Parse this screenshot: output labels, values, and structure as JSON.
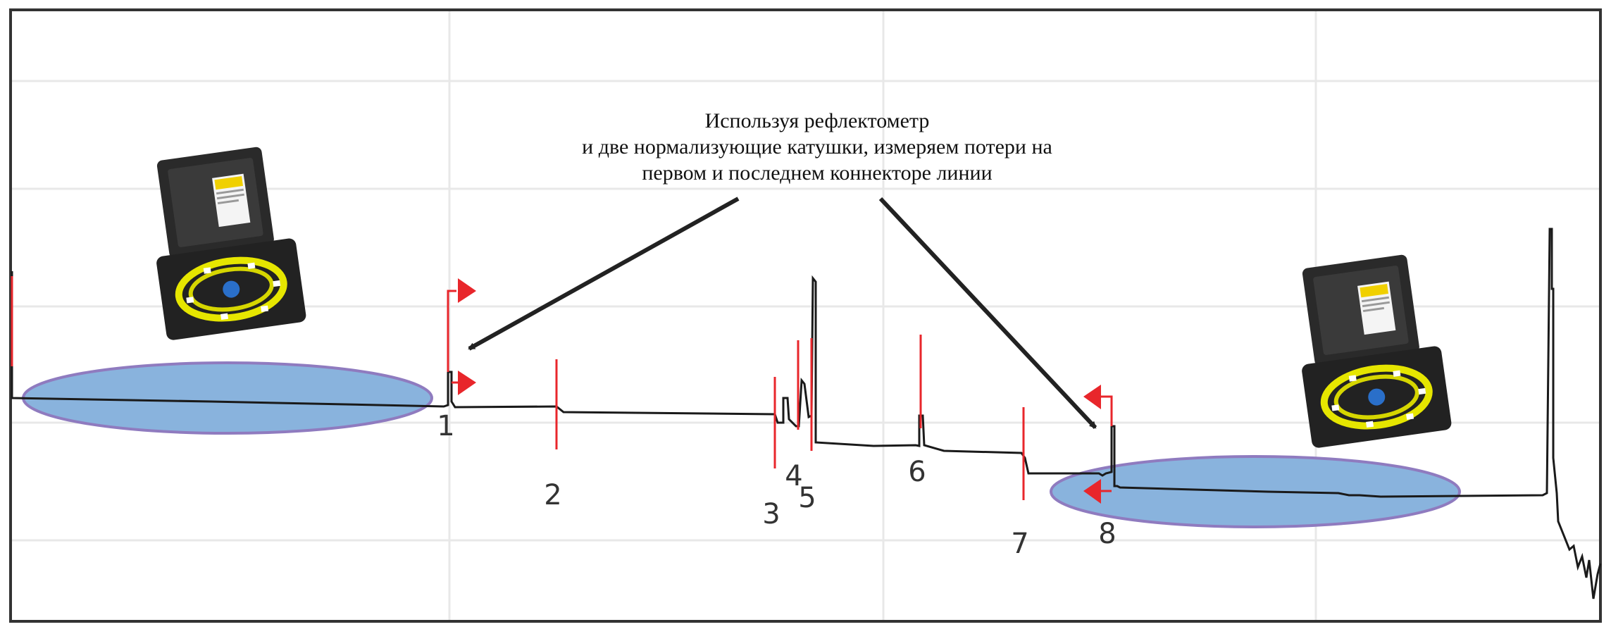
{
  "annotation": {
    "lines": [
      "Используя рефлектометр",
      "и две нормализующие катушки, измеряем потери на",
      "первом и последнем коннекторе линии"
    ]
  },
  "events": [
    {
      "id": "1",
      "label": "1"
    },
    {
      "id": "2",
      "label": "2"
    },
    {
      "id": "3",
      "label": "3"
    },
    {
      "id": "4",
      "label": "4"
    },
    {
      "id": "5",
      "label": "5"
    },
    {
      "id": "6",
      "label": "6"
    },
    {
      "id": "7",
      "label": "7"
    },
    {
      "id": "8",
      "label": "8"
    }
  ],
  "colors": {
    "trace": "#1a1a1a",
    "markers": "#e8262b",
    "launch_reel": "#89b3dd",
    "launch_reel_border": "#8f7bbf",
    "grid": "#e6e6e6",
    "frame": "#333333",
    "arrows": "#222222"
  },
  "icons": {
    "launch_reel_case": "otdr-launch-reel-case-icon",
    "receive_reel_case": "otdr-receive-reel-case-icon"
  }
}
